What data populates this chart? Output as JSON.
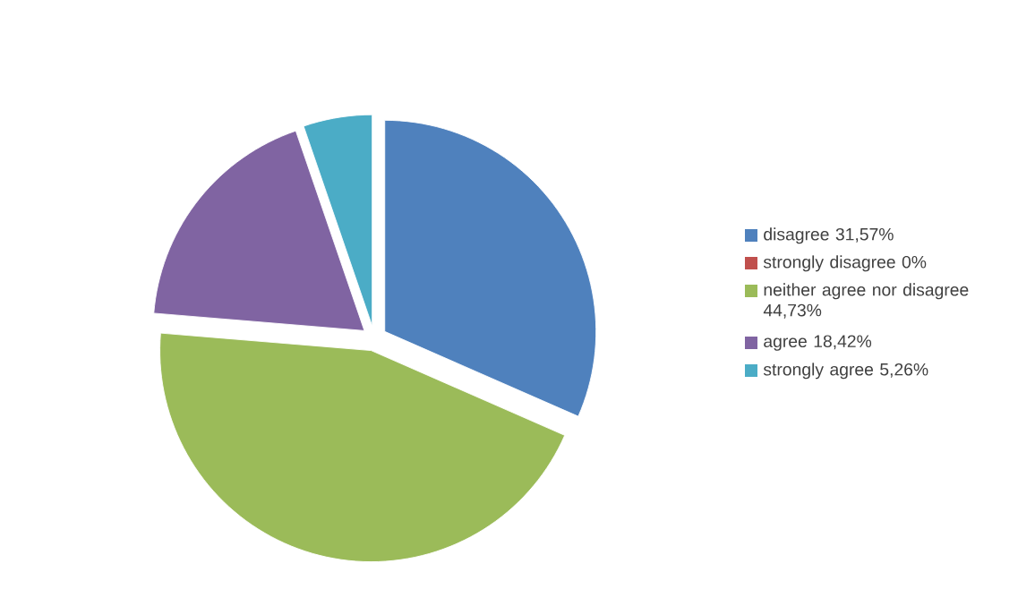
{
  "chart_data": {
    "type": "pie",
    "categories": [
      "disagree 31,57%",
      "strongly disagree 0%",
      "neither agree nor disagree 44,73%",
      "agree  18,42%",
      "strongly agree 5,26%"
    ],
    "values": [
      31.57,
      0,
      44.73,
      18.42,
      5.26
    ],
    "colors": [
      "#4f81bd",
      "#c0504d",
      "#9bbb59",
      "#8064a2",
      "#4bacc6"
    ],
    "legend": "right"
  }
}
